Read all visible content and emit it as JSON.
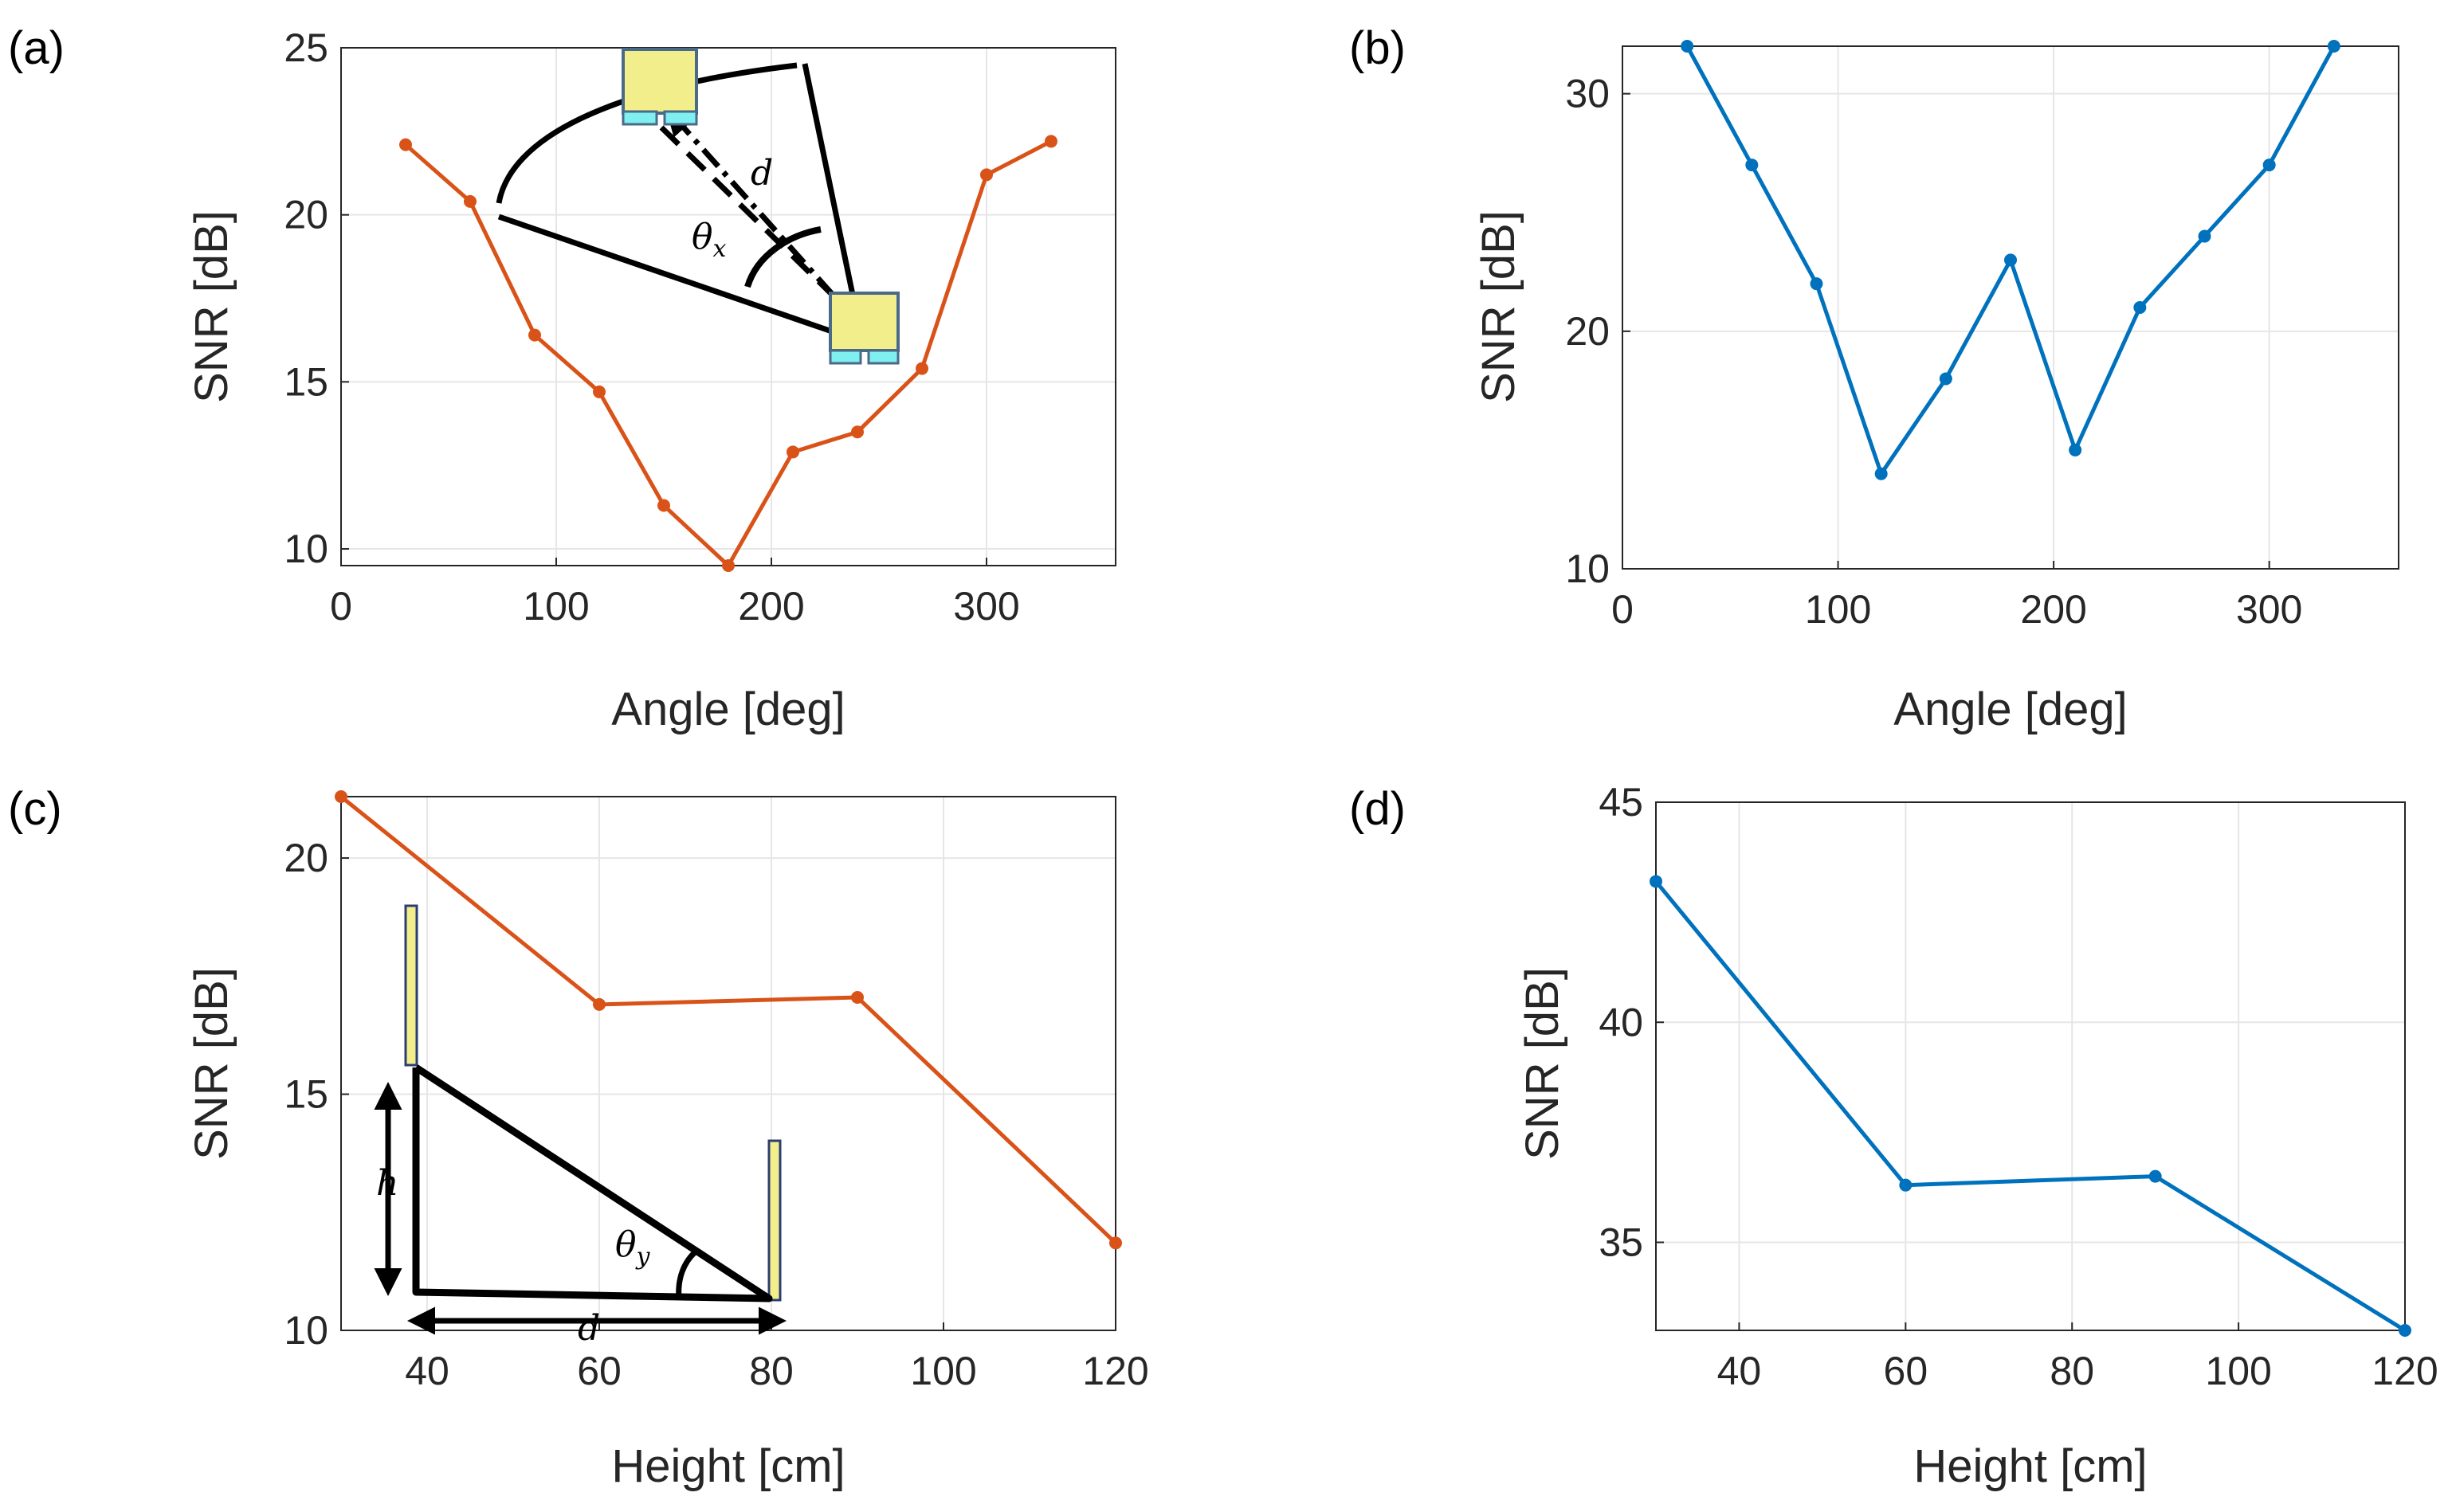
{
  "colors": {
    "orange": "#D95319",
    "blue": "#0072BD",
    "grid": "#e6e6e6",
    "axis": "#262626",
    "device_fill": "#F3EE8C",
    "device_foot": "#7FEFF0"
  },
  "chart_data": [
    {
      "panel": "(a)",
      "type": "line",
      "xlabel": "Angle [deg]",
      "ylabel": "SNR [dB]",
      "xlim": [
        0,
        360
      ],
      "ylim": [
        9.5,
        25
      ],
      "xticks": [
        0,
        100,
        200,
        300
      ],
      "yticks": [
        10,
        15,
        20,
        25
      ],
      "grid": true,
      "series": [
        {
          "name": "SNR",
          "color": "orange",
          "x": [
            30,
            60,
            90,
            120,
            150,
            180,
            210,
            240,
            270,
            300,
            330
          ],
          "y": [
            22.1,
            20.4,
            16.4,
            14.7,
            11.3,
            9.5,
            12.9,
            13.5,
            15.4,
            21.2,
            22.2
          ]
        }
      ],
      "inset_labels": {
        "distance": "d",
        "angle": "θ",
        "angle_sub": "x"
      }
    },
    {
      "panel": "(b)",
      "type": "line",
      "xlabel": "Angle [deg]",
      "ylabel": "SNR [dB]",
      "xlim": [
        0,
        360
      ],
      "ylim": [
        10,
        32
      ],
      "xticks": [
        0,
        100,
        200,
        300
      ],
      "yticks": [
        10,
        20,
        30
      ],
      "grid": true,
      "series": [
        {
          "name": "SNR",
          "color": "blue",
          "x": [
            30,
            60,
            90,
            120,
            150,
            180,
            210,
            240,
            270,
            300,
            330
          ],
          "y": [
            32,
            27,
            22,
            14,
            18,
            23,
            15,
            21,
            24,
            27,
            32
          ]
        }
      ]
    },
    {
      "panel": "(c)",
      "type": "line",
      "xlabel": "Height [cm]",
      "ylabel": "SNR [dB]",
      "xlim": [
        30,
        120
      ],
      "ylim": [
        10,
        21.3
      ],
      "xticks": [
        40,
        60,
        80,
        100,
        120
      ],
      "yticks": [
        10,
        15,
        20
      ],
      "grid": true,
      "series": [
        {
          "name": "SNR",
          "color": "orange",
          "x": [
            30,
            60,
            90,
            120
          ],
          "y": [
            21.3,
            16.9,
            17.05,
            11.85
          ]
        }
      ],
      "inset_labels": {
        "height": "h",
        "distance": "d",
        "angle": "θ",
        "angle_sub": "y"
      }
    },
    {
      "panel": "(d)",
      "type": "line",
      "xlabel": "Height [cm]",
      "ylabel": "SNR [dB]",
      "xlim": [
        30,
        120
      ],
      "ylim": [
        33,
        45
      ],
      "xticks": [
        40,
        60,
        80,
        100,
        120
      ],
      "yticks": [
        35,
        40,
        45
      ],
      "grid": true,
      "series": [
        {
          "name": "SNR",
          "color": "blue",
          "x": [
            30,
            60,
            90,
            120
          ],
          "y": [
            43.2,
            36.3,
            36.5,
            33
          ]
        }
      ]
    }
  ]
}
